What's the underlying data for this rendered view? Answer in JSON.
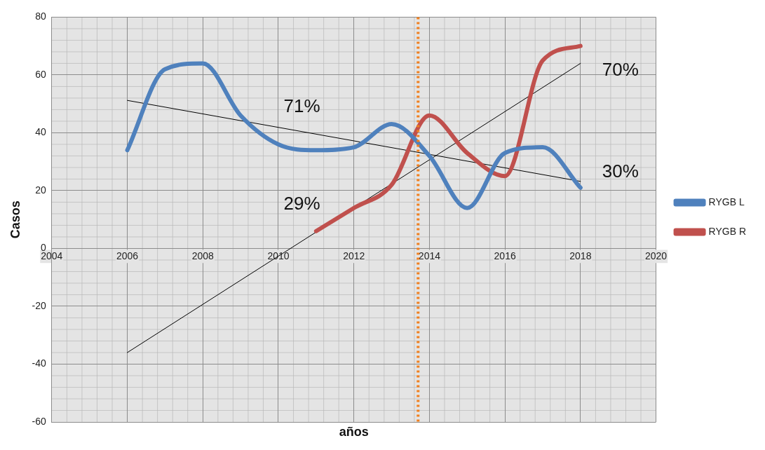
{
  "chart_data": {
    "type": "line",
    "xlabel": "años",
    "ylabel": "Casos",
    "x": [
      2006,
      2007,
      2008,
      2009,
      2010,
      2011,
      2012,
      2013,
      2014,
      2015,
      2016,
      2017,
      2018
    ],
    "series": [
      {
        "name": "RYGB L",
        "color": "#4f81bd",
        "values": [
          34,
          62,
          64,
          46,
          36,
          34,
          35,
          43,
          32,
          14,
          33,
          35,
          21
        ]
      },
      {
        "name": "RYGB R",
        "color": "#c0504d",
        "x": [
          2011,
          2012,
          2013,
          2014,
          2015,
          2016,
          2017,
          2018
        ],
        "values": [
          6,
          14,
          22,
          46,
          33,
          25,
          65,
          70
        ]
      },
      {
        "type": "line",
        "color": "#000000",
        "x": [
          2006,
          2018
        ],
        "values": [
          51.2,
          23.2
        ]
      },
      {
        "type": "line",
        "color": "#000000",
        "x": [
          2006,
          2018
        ],
        "values": [
          -36,
          64
        ]
      }
    ],
    "xlim": [
      2004,
      2020
    ],
    "xticks": [
      2004,
      2006,
      2008,
      2010,
      2012,
      2014,
      2016,
      2018,
      2020
    ],
    "ylim": [
      -60,
      80
    ],
    "yticks": [
      -60,
      -40,
      -20,
      0,
      20,
      40,
      60,
      80
    ],
    "ref_lines": [
      {
        "axis": "x",
        "value": 2013.7,
        "color": "#f08020",
        "line_style": "dotted"
      }
    ],
    "annotations": [
      "71%",
      "29%",
      "70%",
      "30%"
    ],
    "grid": true,
    "legend": "right",
    "marker": "none"
  }
}
